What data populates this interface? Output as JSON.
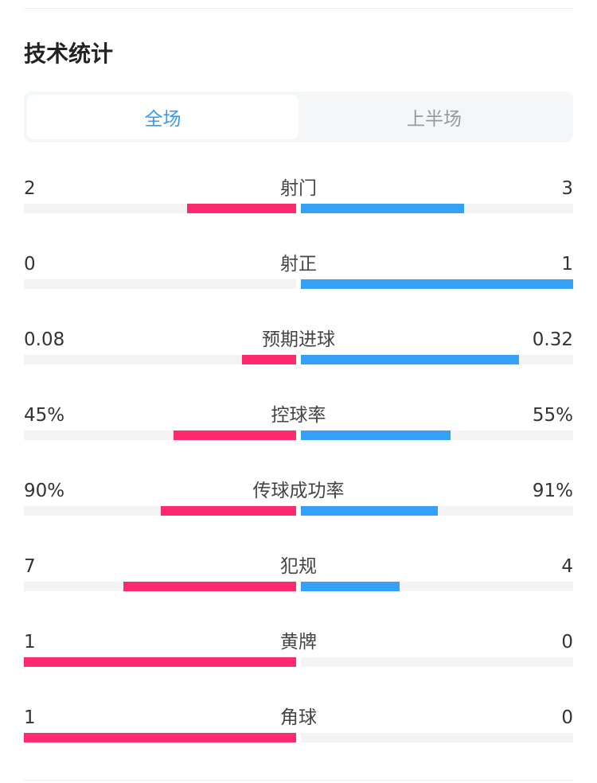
{
  "title": "技术统计",
  "tabs": [
    {
      "label": "全场",
      "active": true
    },
    {
      "label": "上半场",
      "active": false
    }
  ],
  "colors": {
    "home": "#ff2a6d",
    "away": "#35a0f8",
    "active_tab": "#3a9be8"
  },
  "stats": [
    {
      "label": "射门",
      "home": "2",
      "away": "3",
      "home_share": 0.4,
      "away_share": 0.6
    },
    {
      "label": "射正",
      "home": "0",
      "away": "1",
      "home_share": 0,
      "away_share": 1
    },
    {
      "label": "预期进球",
      "home": "0.08",
      "away": "0.32",
      "home_share": 0.2,
      "away_share": 0.8
    },
    {
      "label": "控球率",
      "home": "45%",
      "away": "55%",
      "home_share": 0.45,
      "away_share": 0.55
    },
    {
      "label": "传球成功率",
      "home": "90%",
      "away": "91%",
      "home_share": 0.497,
      "away_share": 0.503
    },
    {
      "label": "犯规",
      "home": "7",
      "away": "4",
      "home_share": 0.636,
      "away_share": 0.364
    },
    {
      "label": "黄牌",
      "home": "1",
      "away": "0",
      "home_share": 1,
      "away_share": 0
    },
    {
      "label": "角球",
      "home": "1",
      "away": "0",
      "home_share": 1,
      "away_share": 0
    }
  ]
}
